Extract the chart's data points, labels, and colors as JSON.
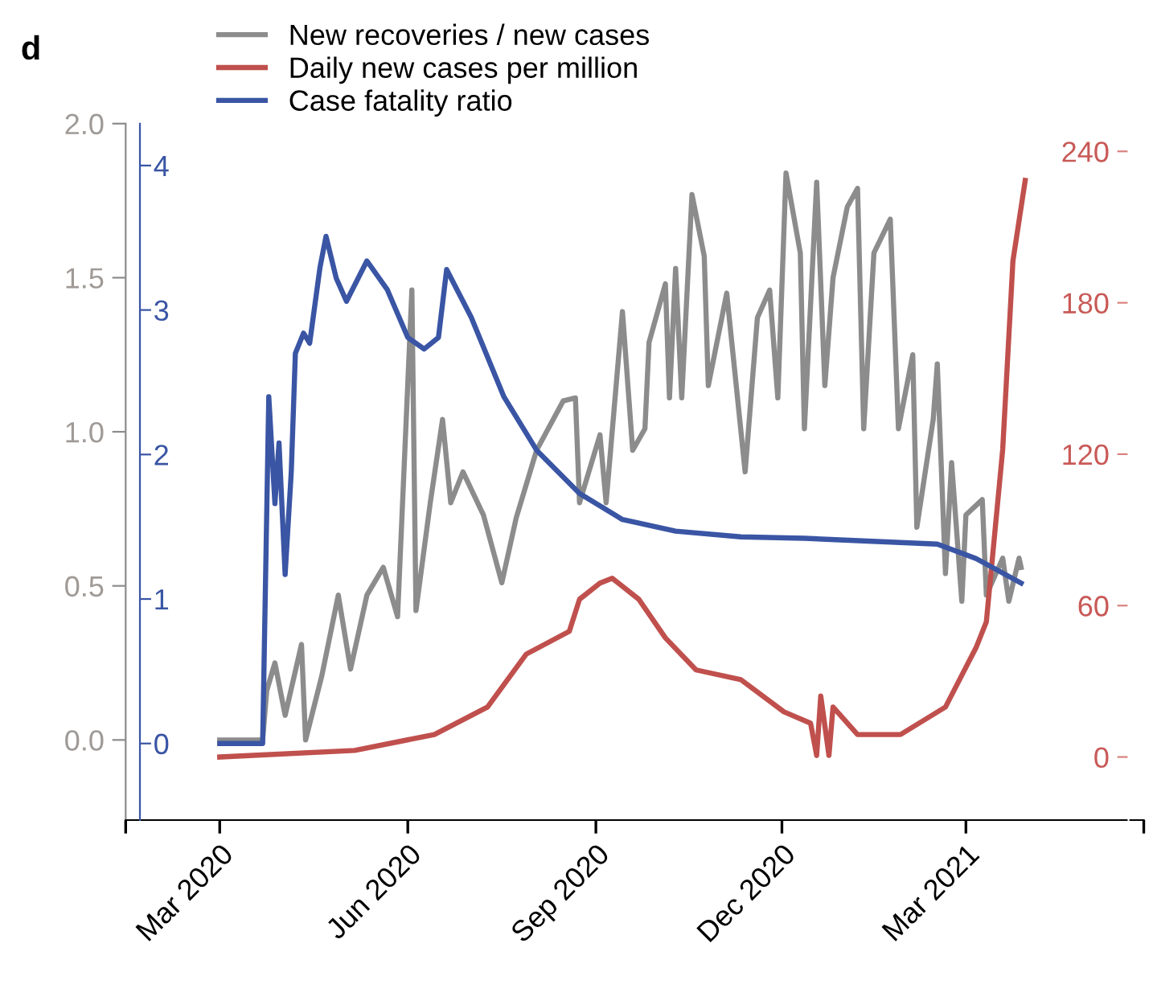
{
  "chart_data": {
    "type": "line",
    "title": "d",
    "xlim": [
      "2020-01-15",
      "2021-05-27"
    ],
    "xticks": [
      {
        "value": "2020-01-15",
        "label": null
      },
      {
        "value": "2020-03-01",
        "label": "Mar 2020"
      },
      {
        "value": "2020-06-01",
        "label": "Jun 2020"
      },
      {
        "value": "2020-09-01",
        "label": "Sep 2020"
      },
      {
        "value": "2020-12-01",
        "label": "Dec 2020"
      },
      {
        "value": "2021-03-01",
        "label": "Mar 2021"
      },
      {
        "value": "2021-05-27",
        "label": null
      }
    ],
    "ylim": [
      -0.26,
      2.0
    ],
    "yticks": [
      {
        "value": 0,
        "label": "0.0"
      },
      {
        "value": 0.5,
        "label": "0.5"
      },
      {
        "value": 1,
        "label": "1.0"
      },
      {
        "value": 1.5,
        "label": "1.5"
      },
      {
        "value": 2,
        "label": "2.0"
      }
    ],
    "y2lim": [
      -25,
      251
    ],
    "y2ticks": [
      0,
      60,
      120,
      180,
      240
    ],
    "y3lim": [
      -0.53,
      4.29
    ],
    "y3ticks": [
      0,
      1,
      2,
      3,
      4
    ],
    "legend": "top left",
    "series": [
      {
        "name": "New recoveries / new cases",
        "color": "#8c8c8c",
        "axis": "y",
        "x": [
          "2020-03-01",
          "2020-03-22",
          "2020-03-24",
          "2020-03-28",
          "2020-04-02",
          "2020-04-10",
          "2020-04-12",
          "2020-04-20",
          "2020-04-28",
          "2020-05-04",
          "2020-05-12",
          "2020-05-20",
          "2020-05-27",
          "2020-06-03",
          "2020-06-05",
          "2020-06-12",
          "2020-06-18",
          "2020-06-22",
          "2020-06-28",
          "2020-07-08",
          "2020-07-17",
          "2020-07-24",
          "2020-08-03",
          "2020-08-16",
          "2020-08-22",
          "2020-08-24",
          "2020-09-03",
          "2020-09-06",
          "2020-09-14",
          "2020-09-19",
          "2020-09-25",
          "2020-09-27",
          "2020-10-05",
          "2020-10-07",
          "2020-10-10",
          "2020-10-13",
          "2020-10-18",
          "2020-10-24",
          "2020-10-26",
          "2020-11-04",
          "2020-11-13",
          "2020-11-19",
          "2020-11-25",
          "2020-11-29",
          "2020-12-03",
          "2020-12-10",
          "2020-12-12",
          "2020-12-18",
          "2020-12-22",
          "2020-12-26",
          "2021-01-02",
          "2021-01-07",
          "2021-01-10",
          "2021-01-15",
          "2021-01-23",
          "2021-01-27",
          "2021-02-03",
          "2021-02-05",
          "2021-02-13",
          "2021-02-15",
          "2021-02-19",
          "2021-02-22",
          "2021-02-27",
          "2021-03-01",
          "2021-03-09",
          "2021-03-11",
          "2021-03-19",
          "2021-03-22",
          "2021-03-27",
          "2021-03-28"
        ],
        "values": [
          0,
          0,
          0.16,
          0.25,
          0.08,
          0.31,
          0.0,
          0.21,
          0.47,
          0.23,
          0.47,
          0.56,
          0.4,
          1.46,
          0.42,
          0.77,
          1.04,
          0.77,
          0.87,
          0.73,
          0.51,
          0.72,
          0.94,
          1.1,
          1.11,
          0.77,
          0.99,
          0.77,
          1.39,
          0.94,
          1.01,
          1.29,
          1.48,
          1.11,
          1.53,
          1.11,
          1.77,
          1.57,
          1.15,
          1.45,
          0.87,
          1.37,
          1.46,
          1.11,
          1.84,
          1.58,
          1.01,
          1.81,
          1.15,
          1.5,
          1.73,
          1.79,
          1.01,
          1.58,
          1.69,
          1.01,
          1.25,
          0.69,
          1.04,
          1.22,
          0.54,
          0.9,
          0.45,
          0.73,
          0.78,
          0.47,
          0.59,
          0.45,
          0.59,
          0.56
        ]
      },
      {
        "name": "Daily new cases per million",
        "color": "#c0504d",
        "axis": "y2",
        "x": [
          "2020-03-01",
          "2020-05-06",
          "2020-06-14",
          "2020-07-10",
          "2020-07-29",
          "2020-08-19",
          "2020-08-24",
          "2020-09-03",
          "2020-09-09",
          "2020-09-14",
          "2020-09-22",
          "2020-10-05",
          "2020-10-20",
          "2020-11-11",
          "2020-12-02",
          "2020-12-15",
          "2020-12-18",
          "2020-12-20",
          "2020-12-24",
          "2020-12-26",
          "2021-01-07",
          "2021-01-28",
          "2021-02-19",
          "2021-03-06",
          "2021-03-11",
          "2021-03-19",
          "2021-03-24",
          "2021-03-30"
        ],
        "values": [
          0,
          2.6,
          8.9,
          19.8,
          40.8,
          49.8,
          62.5,
          68.9,
          70.8,
          67.6,
          62.5,
          47.2,
          34.5,
          30.6,
          17.9,
          13.4,
          0.6,
          24.2,
          0.6,
          19.8,
          8.9,
          8.9,
          19.8,
          43.4,
          53.6,
          121.9,
          196.6,
          228.5
        ]
      },
      {
        "name": "Case fatality ratio",
        "color": "#3a55a4",
        "axis": "y3",
        "x": [
          "2020-03-01",
          "2020-03-22",
          "2020-03-25",
          "2020-03-28",
          "2020-03-30",
          "2020-04-02",
          "2020-04-05",
          "2020-04-07",
          "2020-04-11",
          "2020-04-14",
          "2020-04-19",
          "2020-04-22",
          "2020-04-27",
          "2020-05-02",
          "2020-05-12",
          "2020-05-22",
          "2020-06-01",
          "2020-06-09",
          "2020-06-16",
          "2020-06-20",
          "2020-07-02",
          "2020-07-18",
          "2020-08-03",
          "2020-08-24",
          "2020-09-14",
          "2020-10-10",
          "2020-11-11",
          "2020-12-12",
          "2021-02-15",
          "2021-03-06",
          "2021-03-28"
        ],
        "values": [
          0,
          0,
          2.4,
          1.66,
          2.08,
          1.17,
          1.88,
          2.7,
          2.84,
          2.77,
          3.29,
          3.51,
          3.22,
          3.06,
          3.34,
          3.14,
          2.81,
          2.73,
          2.81,
          3.28,
          2.95,
          2.4,
          2.03,
          1.73,
          1.55,
          1.47,
          1.43,
          1.42,
          1.38,
          1.28,
          1.11
        ]
      }
    ]
  }
}
